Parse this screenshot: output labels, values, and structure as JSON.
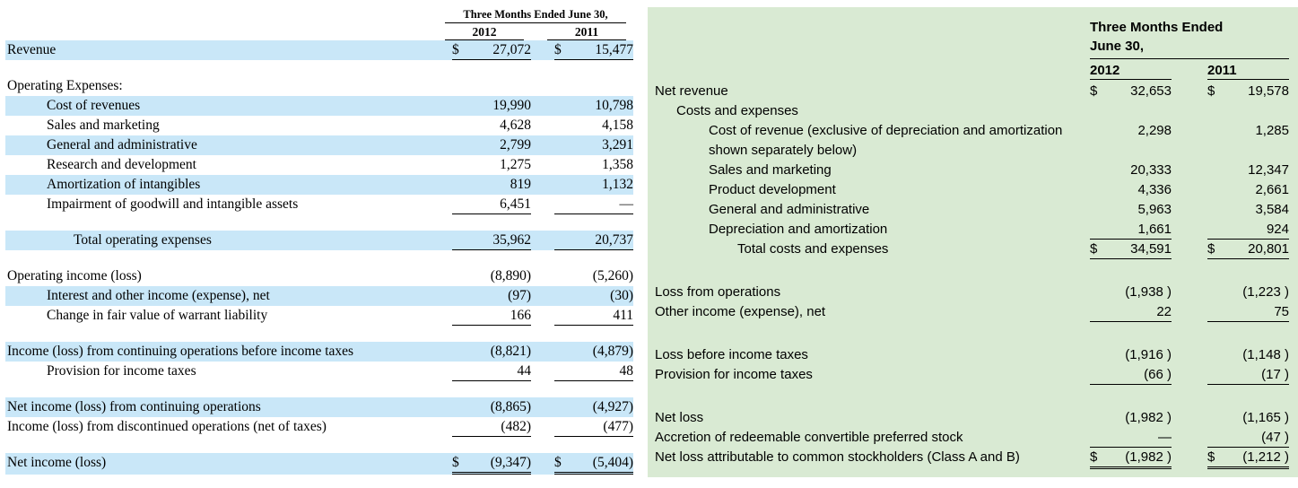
{
  "colors": {
    "highlight_row": "#c9e7f8",
    "panel_background": "#d9ead3",
    "text": "#000000"
  },
  "left_statement": {
    "header": {
      "period": "Three Months Ended June 30,",
      "col_2012": "2012",
      "col_2011": "2011"
    },
    "rows": [
      {
        "label": "Revenue",
        "indent": 0,
        "d1": "$",
        "v1": "27,072",
        "d2": "$",
        "v2": "15,477",
        "hl": true,
        "ul": "single"
      },
      {
        "spacer": true
      },
      {
        "label": "Operating Expenses:",
        "indent": 0
      },
      {
        "label": "Cost of revenues",
        "indent": 1,
        "v1": "19,990",
        "v2": "10,798",
        "hl": true
      },
      {
        "label": "Sales and marketing",
        "indent": 1,
        "v1": "4,628",
        "v2": "4,158"
      },
      {
        "label": "General and administrative",
        "indent": 1,
        "v1": "2,799",
        "v2": "3,291",
        "hl": true
      },
      {
        "label": "Research and development",
        "indent": 1,
        "v1": "1,275",
        "v2": "1,358"
      },
      {
        "label": "Amortization of intangibles",
        "indent": 1,
        "v1": "819",
        "v2": "1,132",
        "hl": true
      },
      {
        "label": "Impairment of goodwill and intangible assets",
        "indent": 1,
        "v1": "6,451",
        "v2": "—",
        "ul": "single"
      },
      {
        "spacer": true
      },
      {
        "label": "Total operating expenses",
        "indent": 2,
        "v1": "35,962",
        "v2": "20,737",
        "hl": true,
        "ul": "single"
      },
      {
        "spacer": true
      },
      {
        "label": "Operating income (loss)",
        "indent": 0,
        "v1": "(8,890)",
        "v2": "(5,260)"
      },
      {
        "label": "Interest and other income (expense), net",
        "indent": 1,
        "v1": "(97)",
        "v2": "(30)",
        "hl": true
      },
      {
        "label": "Change in fair value of warrant liability",
        "indent": 1,
        "v1": "166",
        "v2": "411",
        "ul": "single"
      },
      {
        "spacer": true
      },
      {
        "label": "Income (loss) from continuing operations before income taxes",
        "indent": 0,
        "v1": "(8,821)",
        "v2": "(4,879)",
        "hl": true
      },
      {
        "label": "Provision for income taxes",
        "indent": 1,
        "v1": "44",
        "v2": "48",
        "ul": "single"
      },
      {
        "spacer": true
      },
      {
        "label": "Net income (loss) from continuing operations",
        "indent": 0,
        "v1": "(8,865)",
        "v2": "(4,927)",
        "hl": true
      },
      {
        "label": "Income (loss) from discontinued operations (net of taxes)",
        "indent": 0,
        "v1": "(482)",
        "v2": "(477)",
        "ul": "single"
      },
      {
        "spacer": true
      },
      {
        "label": "Net income (loss)",
        "indent": 0,
        "d1": "$",
        "v1": "(9,347)",
        "d2": "$",
        "v2": "(5,404)",
        "hl": true,
        "ul": "double"
      }
    ]
  },
  "right_statement": {
    "header": {
      "period_line1": "Three Months Ended",
      "period_line2": "June 30,",
      "col_2012": "2012",
      "col_2011": "2011"
    },
    "rows": [
      {
        "label": "Net revenue",
        "indent": 0,
        "d1": "$",
        "v1": "32,653",
        "d2": "$",
        "v2": "19,578"
      },
      {
        "label": "Costs and expenses",
        "indent": 1
      },
      {
        "label": "Cost of revenue (exclusive of depreciation and amortization shown separately below)",
        "indent": 2,
        "v1": "2,298",
        "v2": "1,285"
      },
      {
        "label": "Sales and marketing",
        "indent": 2,
        "v1": "20,333",
        "v2": "12,347"
      },
      {
        "label": "Product development",
        "indent": 2,
        "v1": "4,336",
        "v2": "2,661"
      },
      {
        "label": "General and administrative",
        "indent": 2,
        "v1": "5,963",
        "v2": "3,584"
      },
      {
        "label": "Depreciation and amortization",
        "indent": 2,
        "v1": "1,661",
        "v2": "924",
        "ul": "single"
      },
      {
        "label": "Total costs and expenses",
        "indent": 3,
        "d1": "$",
        "v1": "34,591",
        "d2": "$",
        "v2": "20,801",
        "ul": "single"
      },
      {
        "spacer": true
      },
      {
        "label": "Loss from operations",
        "indent": 0,
        "v1": "(1,938 )",
        "v2": "(1,223 )"
      },
      {
        "label": "Other income (expense), net",
        "indent": 0,
        "v1": "22",
        "v2": "75",
        "ul": "single"
      },
      {
        "spacer": true
      },
      {
        "label": "Loss before income taxes",
        "indent": 0,
        "v1": "(1,916 )",
        "v2": "(1,148 )"
      },
      {
        "label": "Provision for income taxes",
        "indent": 0,
        "v1": "(66 )",
        "v2": "(17 )",
        "ul": "single"
      },
      {
        "spacer": true
      },
      {
        "label": "Net loss",
        "indent": 0,
        "v1": "(1,982 )",
        "v2": "(1,165 )"
      },
      {
        "label": "Accretion of redeemable convertible preferred stock",
        "indent": 0,
        "v1": "—",
        "v2": "(47 )",
        "ul": "single"
      },
      {
        "label": "Net loss attributable to common stockholders (Class A and B)",
        "indent": 0,
        "d1": "$",
        "v1": "(1,982 )",
        "d2": "$",
        "v2": "(1,212 )",
        "ul": "double"
      }
    ]
  }
}
